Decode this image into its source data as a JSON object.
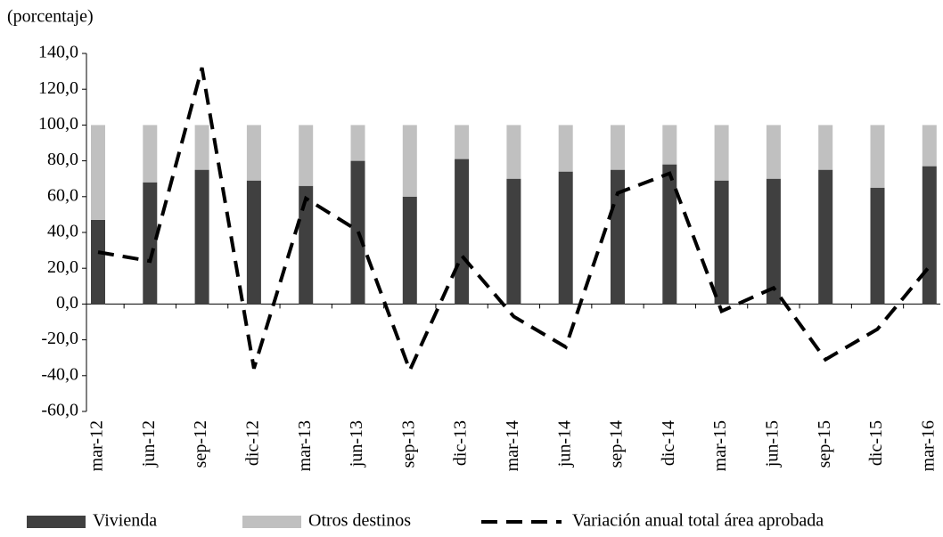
{
  "chart_data": {
    "type": "bar_line",
    "title": "(porcentaje)",
    "categories": [
      "mar-12",
      "jun-12",
      "sep-12",
      "dic-12",
      "mar-13",
      "jun-13",
      "sep-13",
      "dic-13",
      "mar-14",
      "jun-14",
      "sep-14",
      "dic-14",
      "mar-15",
      "jun-15",
      "sep-15",
      "dic-15",
      "mar-16"
    ],
    "series": [
      {
        "name": "Vivienda",
        "color": "#404040",
        "values": [
          47,
          68,
          75,
          69,
          66,
          80,
          60,
          81,
          70,
          74,
          75,
          78,
          69,
          70,
          75,
          65,
          77
        ]
      },
      {
        "name": "Otros destinos",
        "color": "#c0c0c0",
        "values": [
          53,
          32,
          25,
          31,
          34,
          20,
          40,
          19,
          30,
          26,
          25,
          22,
          31,
          30,
          25,
          35,
          23
        ]
      },
      {
        "name": "Variación anual total área aprobada",
        "color": "#000000",
        "type": "line",
        "values": [
          29,
          24,
          132,
          -36,
          59,
          41,
          -37,
          27,
          -7,
          -24,
          62,
          73,
          -4,
          9,
          -31,
          -14,
          21
        ]
      }
    ],
    "ylim": [
      -60,
      140
    ],
    "yticks": [
      {
        "value": -60,
        "label": "-60,0"
      },
      {
        "value": -40,
        "label": "-40,0"
      },
      {
        "value": -20,
        "label": "-20,0"
      },
      {
        "value": 0,
        "label": "0,0"
      },
      {
        "value": 20,
        "label": "20,0"
      },
      {
        "value": 40,
        "label": "40,0"
      },
      {
        "value": 60,
        "label": "60,0"
      },
      {
        "value": 80,
        "label": "80,0"
      },
      {
        "value": 100,
        "label": "100,0"
      },
      {
        "value": 120,
        "label": "120,0"
      },
      {
        "value": 140,
        "label": "140,0"
      }
    ]
  }
}
